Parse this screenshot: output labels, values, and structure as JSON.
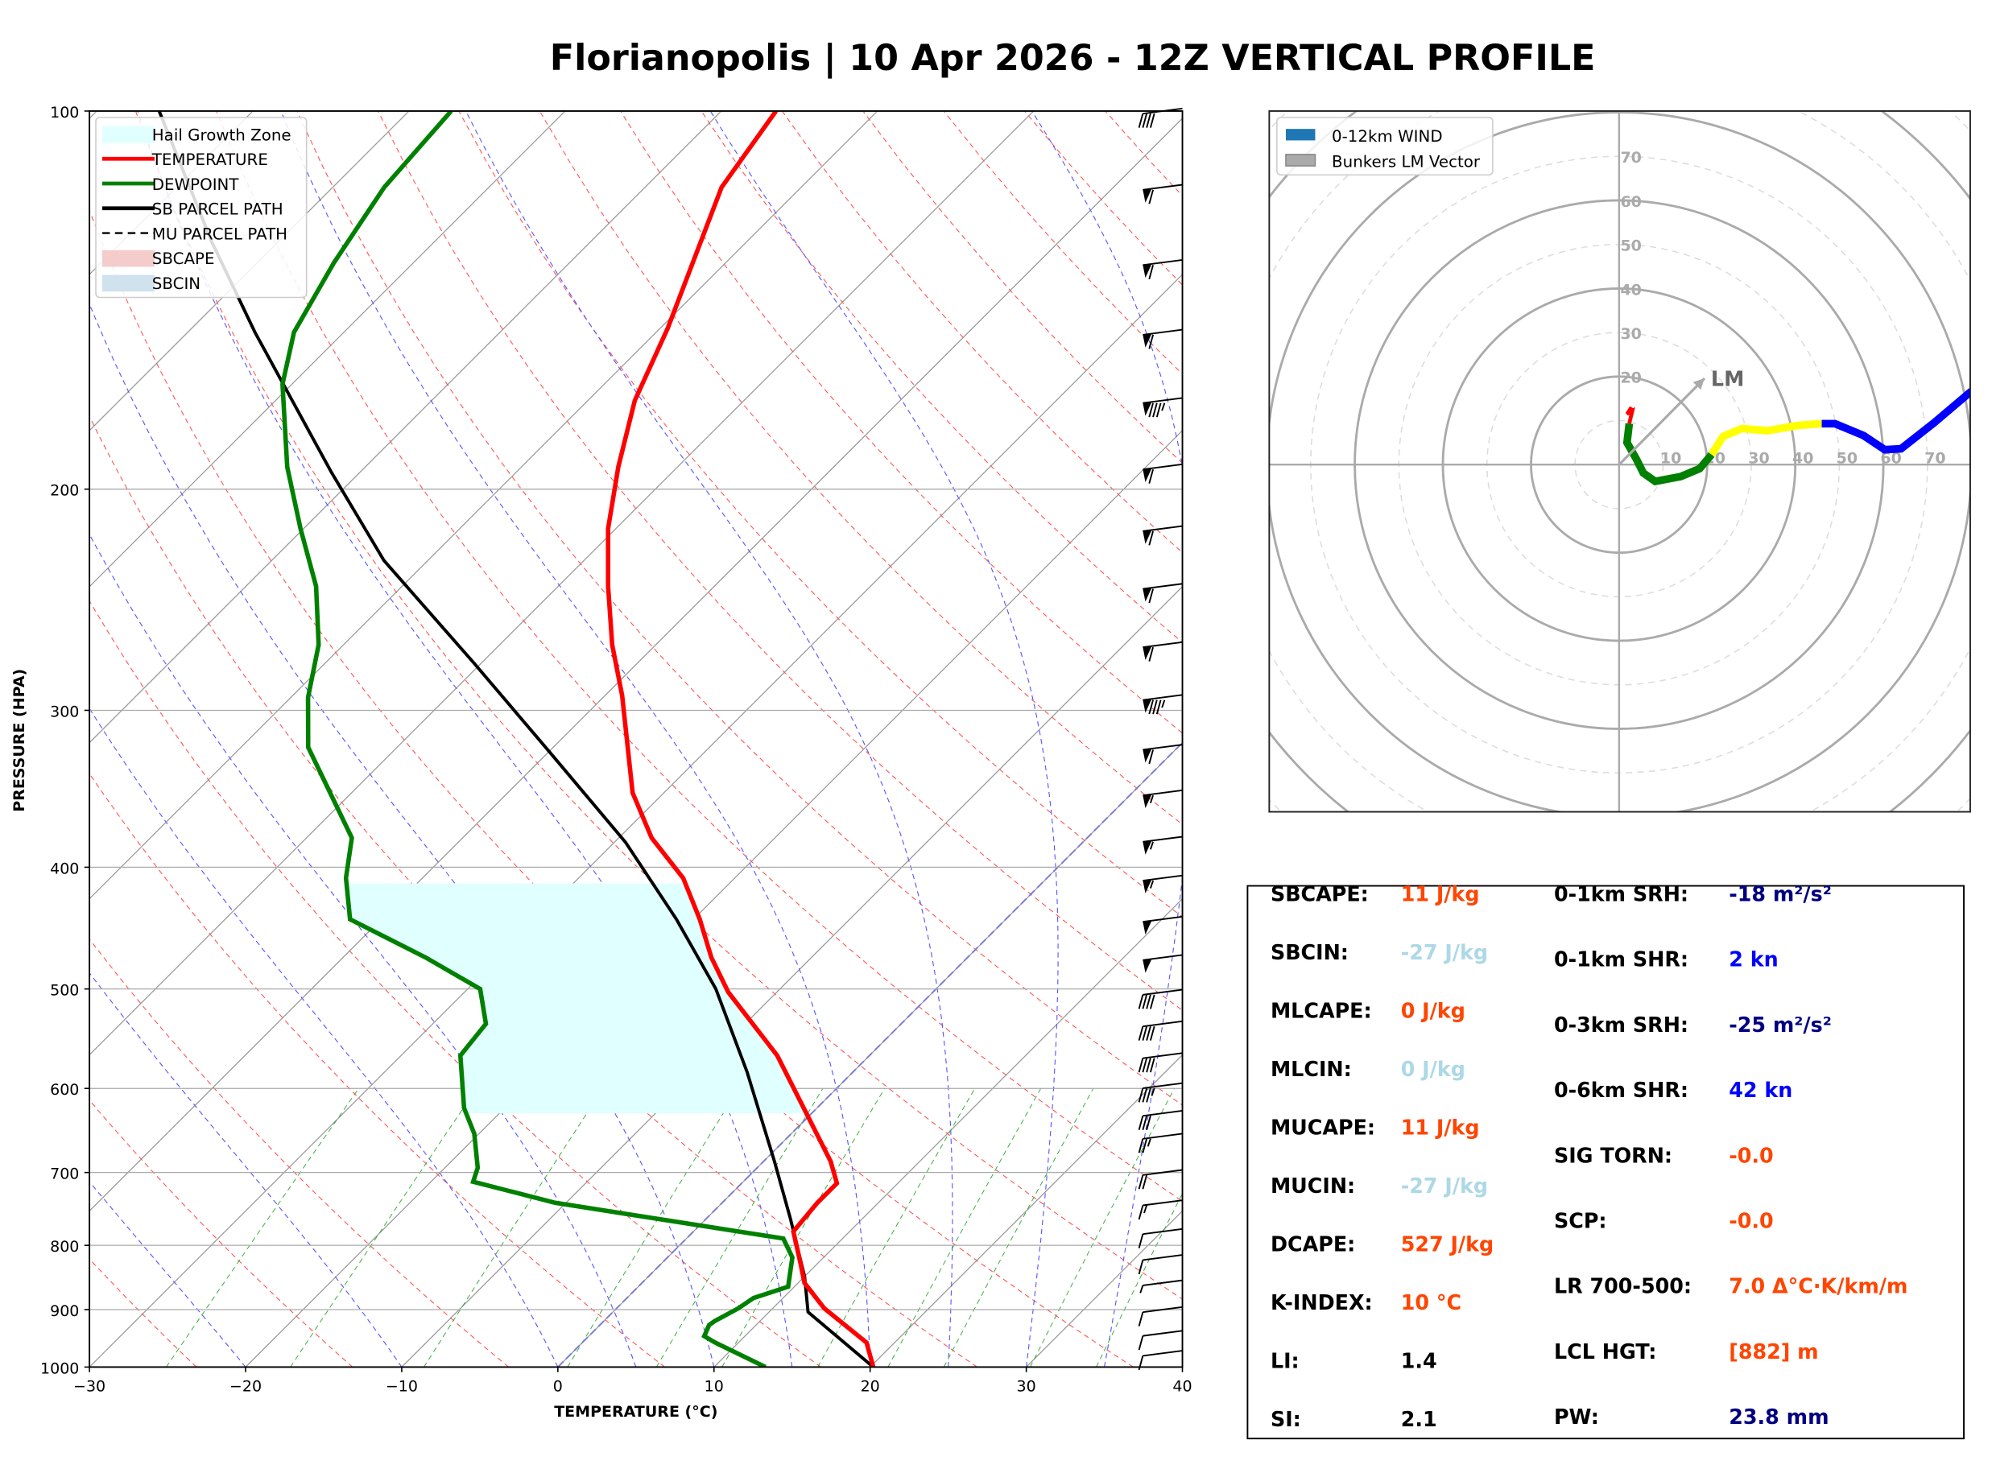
{
  "title": "Florianopolis | 10 Apr 2026 - 12Z VERTICAL PROFILE",
  "chart_data": [
    {
      "type": "line",
      "name": "skew-t",
      "xlabel": "TEMPERATURE (°C)",
      "ylabel": "PRESSURE (HPA)",
      "xlim": [
        -30,
        40
      ],
      "ylim": [
        1000,
        100
      ],
      "y_scale": "log",
      "xticks": [
        -30,
        -20,
        -10,
        0,
        10,
        20,
        30,
        40
      ],
      "xtick_labels": [
        "−30",
        "−20",
        "−10",
        "0",
        "10",
        "20",
        "30",
        "40"
      ],
      "yticks": [
        100,
        200,
        300,
        400,
        500,
        600,
        700,
        800,
        900,
        1000
      ],
      "ytick_labels": [
        "100",
        "200",
        "300",
        "400",
        "500",
        "600",
        "700",
        "800",
        "900",
        "1000"
      ],
      "grid": true,
      "legend_position": "top-left",
      "legend": [
        {
          "label": "Hail Growth Zone",
          "color": "#e0ffff",
          "kind": "patch"
        },
        {
          "label": "TEMPERATURE",
          "color": "#ff0000",
          "kind": "line"
        },
        {
          "label": "DEWPOINT",
          "color": "#008000",
          "kind": "line"
        },
        {
          "label": "SB PARCEL PATH",
          "color": "#000000",
          "kind": "line"
        },
        {
          "label": "MU PARCEL PATH",
          "color": "#000000",
          "kind": "dashed"
        },
        {
          "label": "SBCAPE",
          "color": "#f4cccc",
          "kind": "patch"
        },
        {
          "label": "SBCIN",
          "color": "#cfe2ee",
          "kind": "patch"
        }
      ],
      "series": [
        {
          "name": "TEMPERATURE",
          "color": "#ff0000",
          "pressure": [
            1000,
            956,
            898,
            857,
            827,
            780,
            740,
            714,
            686,
            565,
            503,
            472,
            440,
            408,
            379,
            349,
            292,
            266,
            239,
            215,
            192,
            170,
            149,
            115,
            100
          ],
          "temperature": [
            20.2,
            18.2,
            13.3,
            10.4,
            8.9,
            6.4,
            6.1,
            6.1,
            4.3,
            -5.9,
            -13.1,
            -16.4,
            -19.6,
            -23.3,
            -27.9,
            -32.0,
            -38.9,
            -42.8,
            -46.8,
            -50.5,
            -53.8,
            -57.0,
            -59.5,
            -65.1,
            -66.5
          ]
        },
        {
          "name": "DEWPOINT",
          "color": "#008000",
          "pressure": [
            1000,
            975,
            956,
            945,
            926,
            919,
            898,
            881,
            863,
            818,
            790,
            740,
            712,
            694,
            652,
            622,
            565,
            533,
            500,
            472,
            440,
            408,
            379,
            321,
            293,
            266,
            239,
            215,
            192,
            165,
            150,
            132,
            115,
            100
          ],
          "temperature": [
            13.3,
            10.6,
            8.5,
            7.4,
            7.0,
            7.1,
            7.8,
            8.1,
            9.6,
            8.0,
            6.2,
            -10.7,
            -17.3,
            -17.9,
            -20.3,
            -22.6,
            -26.2,
            -26.6,
            -29.2,
            -34.7,
            -42.0,
            -44.9,
            -47.1,
            -55.7,
            -58.9,
            -61.6,
            -65.5,
            -70.2,
            -75.0,
            -80.6,
            -83.2,
            -85.1,
            -86.7,
            -87.3
          ]
        },
        {
          "name": "SB PARCEL PATH",
          "color": "#000000",
          "pressure": [
            1000,
            904,
            847,
            762,
            686,
            582,
            500,
            440,
            382,
            324,
            275,
            228,
            194,
            150,
            127,
            100
          ],
          "temperature": [
            20.2,
            12.5,
            10.0,
            5.4,
            0.7,
            -6.8,
            -14.1,
            -21.1,
            -29.3,
            -39.9,
            -50.5,
            -62.8,
            -71.8,
            -85.7,
            -94.3,
            -106.0
          ]
        }
      ],
      "hail_growth_zone_hpa": [
        410,
        628
      ],
      "wind_barbs": {
        "pressure": [
          100,
          115,
          132,
          150,
          170,
          192,
          215,
          239,
          266,
          293,
          321,
          349,
          380,
          408,
          440,
          472,
          503,
          533,
          565,
          597,
          628,
          655,
          700,
          740,
          780,
          818,
          857,
          900,
          940,
          975
        ],
        "speed_kn": [
          40,
          60,
          60,
          60,
          85,
          60,
          60,
          60,
          60,
          85,
          60,
          55,
          55,
          55,
          50,
          50,
          40,
          40,
          40,
          35,
          30,
          25,
          20,
          15,
          10,
          10,
          5,
          10,
          10,
          10
        ]
      }
    },
    {
      "type": "line",
      "name": "hodograph",
      "rings_kn": [
        10,
        20,
        30,
        40,
        50,
        60,
        70,
        80
      ],
      "ring_labels": [
        "10",
        "20",
        "30",
        "40",
        "50",
        "60",
        "70"
      ],
      "legend_position": "top-left",
      "legend": [
        {
          "label": "0-12km WIND",
          "color": "#1f77b4"
        },
        {
          "label": "Bunkers LM Vector",
          "color": "#aaaaaa"
        }
      ],
      "segments": [
        {
          "color": "#ff0000",
          "u": [
            2.3,
            2.8,
            1.8,
            3.0,
            2.3
          ],
          "v": [
            12.0,
            13.0,
            11.5,
            12.2,
            9.3
          ]
        },
        {
          "color": "#008000",
          "u": [
            2.3,
            1.8,
            3.9,
            5.5,
            8.2,
            14.0,
            18.3,
            21.0
          ],
          "v": [
            9.3,
            5.0,
            1.3,
            -1.9,
            -3.8,
            -2.7,
            -0.9,
            2.3
          ]
        },
        {
          "color": "#ffff00",
          "u": [
            21.0,
            23.6,
            27.9,
            33.7,
            40.6,
            46.0
          ],
          "v": [
            2.3,
            6.4,
            8.2,
            7.7,
            8.9,
            9.3
          ]
        },
        {
          "color": "#0000ff",
          "u": [
            46.0,
            49.0,
            55.5,
            60.3,
            64.0,
            71.5,
            80.0
          ],
          "v": [
            9.3,
            9.3,
            6.6,
            3.4,
            3.6,
            9.5,
            16.7
          ]
        }
      ],
      "bunkers_lm": {
        "label": "LM",
        "u": 19.4,
        "v": 19.6
      }
    }
  ],
  "stats": {
    "left": [
      {
        "label": "SBCAPE:",
        "value": "11 J/kg",
        "color": "#ff4500"
      },
      {
        "label": "SBCIN:",
        "value": "-27 J/kg",
        "color": "#add8e6"
      },
      {
        "label": "MLCAPE:",
        "value": "0 J/kg",
        "color": "#ff4500"
      },
      {
        "label": "MLCIN:",
        "value": "0 J/kg",
        "color": "#add8e6"
      },
      {
        "label": "MUCAPE:",
        "value": "11 J/kg",
        "color": "#ff4500"
      },
      {
        "label": "MUCIN:",
        "value": "-27 J/kg",
        "color": "#add8e6"
      },
      {
        "label": "DCAPE:",
        "value": "527 J/kg",
        "color": "#ff4500"
      },
      {
        "label": "K-INDEX:",
        "value": "10 °C",
        "color": "#ff4500"
      },
      {
        "label": "LI:",
        "value": "1.4",
        "color": "#000000"
      },
      {
        "label": "SI:",
        "value": "2.1",
        "color": "#000000"
      }
    ],
    "right": [
      {
        "label": "0-1km SRH:",
        "value": "-18 m²/s²",
        "color": "#000080"
      },
      {
        "label": "0-1km SHR:",
        "value": "2 kn",
        "color": "#0000ff"
      },
      {
        "label": "0-3km SRH:",
        "value": "-25 m²/s²",
        "color": "#000080"
      },
      {
        "label": "0-6km SHR:",
        "value": "42 kn",
        "color": "#0000ff"
      },
      {
        "label": "SIG TORN:",
        "value": "-0.0",
        "color": "#ff4500"
      },
      {
        "label": "SCP:",
        "value": "-0.0",
        "color": "#ff4500"
      },
      {
        "label": "LR 700-500:",
        "value": "7.0 Δ°C·K/km/m",
        "color": "#ff4500"
      },
      {
        "label": "LCL HGT:",
        "value": "[882] m",
        "color": "#ff4500"
      },
      {
        "label": "PW:",
        "value": "23.8 mm",
        "color": "#000080"
      }
    ]
  }
}
